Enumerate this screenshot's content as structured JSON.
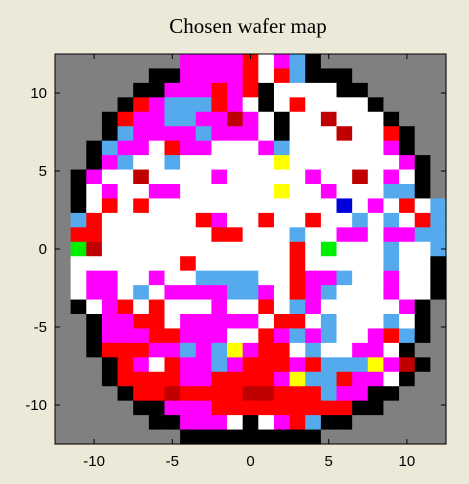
{
  "chart_data": {
    "type": "heatmap",
    "title": "Chosen wafer map",
    "xlabel": "",
    "ylabel": "",
    "xlim": [
      -12.5,
      12.5
    ],
    "ylim": [
      -12.5,
      12.5
    ],
    "xticks": [
      -10,
      -5,
      0,
      5,
      10
    ],
    "yticks": [
      10,
      5,
      0,
      -5,
      -10
    ],
    "grid": false,
    "legend": "none",
    "cell_colors": {
      ".": "#808080",
      "K": "#000000",
      "W": "#ffffff",
      "M": "#ff00ff",
      "R": "#ff0000",
      "D": "#c00000",
      "B": "#55aaee",
      "Y": "#ffff00",
      "G": "#00ee00",
      "N": "#0000dd"
    },
    "grid_rows_top_to_bottom": [
      "........MMMMRWMBK........",
      "......KKMMMMRWRBKKK......",
      ".....KKMMMRMRKWWWWKK.....",
      "....KRMBBBRMWKWRWWWWK....",
      "...KRMMBBMMDMWKWWDWWWK...",
      "...KBMMMMBMMMWKWWWDWWRK..",
      "..KBMMWRMMWWWMBWWWWWWMK..",
      "..KMBWWBWWWWWWYWWWWWWWMK.",
      ".KMWWDWWWWMWWWWWMWWDWMWK.",
      ".KWMWWMMWWWWWWYWWMWWWBBK.",
      ".KWRWRWWWWWWWWWWWWNWMWRWB",
      ".BRWWWWWWRMWWRWWRWWBWBWRB",
      ".RRWWWWWWWRRWWWBWWMMWMMBB",
      ".GDWWWWWWWWWWWWRWGWWWBWWB",
      ".WWWWWWWRWWWWWWRWWWWWBWWK",
      ".WMMWWMWWBBBBWWRMMBWWMWWK",
      ".WMMWBWMMMMBBMWRMBWWWMWWK",
      ".KWMRWRWWWMWWRWBMWWWWWMK.",
      "..KMMRRWMMMMMWRRWBWWWBWK.",
      "..KMMMRRMMMWWRMBMBWWMRBK.",
      "..KRRRMMBMBYMRRWBWWMMWK..",
      "...KRMWRMMBMRRRMRBBBYMDK.",
      "...KRRRRMMRRRRMYBBRMMWK..",
      "....KRRDRRRRDDRRRBMMKK...",
      ".....KKMMMRRRRRRRRRKK....",
      "......KKMMMWKWMRBKK......",
      "........KKKKKKKKK........"
    ]
  }
}
